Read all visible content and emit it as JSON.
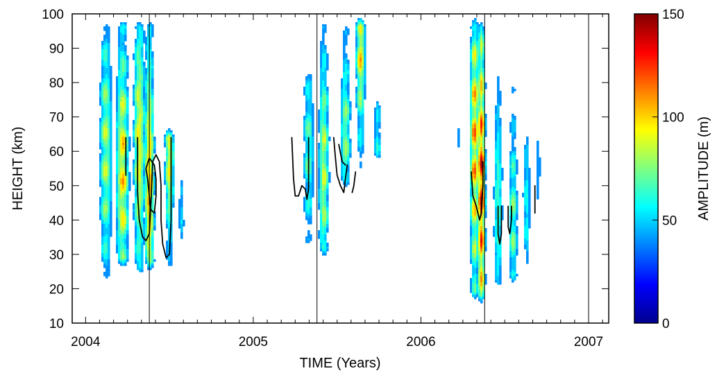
{
  "chart_data": {
    "type": "heatmap",
    "title": "",
    "xlabel": "TIME (Years)",
    "ylabel": "HEIGHT (km)",
    "xlim": [
      2003.92,
      2007.12
    ],
    "ylim": [
      10,
      100
    ],
    "x_ticks": [
      {
        "value": 2004,
        "label": "2004"
      },
      {
        "value": 2005,
        "label": "2005"
      },
      {
        "value": 2006,
        "label": "2006"
      },
      {
        "value": 2007,
        "label": "2007"
      }
    ],
    "y_ticks": [
      {
        "value": 10,
        "label": "10"
      },
      {
        "value": 20,
        "label": "20"
      },
      {
        "value": 30,
        "label": "30"
      },
      {
        "value": 40,
        "label": "40"
      },
      {
        "value": 50,
        "label": "50"
      },
      {
        "value": 60,
        "label": "60"
      },
      {
        "value": 70,
        "label": "70"
      },
      {
        "value": 80,
        "label": "80"
      },
      {
        "value": 90,
        "label": "90"
      },
      {
        "value": 100,
        "label": "100"
      }
    ],
    "colorbar": {
      "label": "AMPLITUDE (m)",
      "range": [
        0,
        150
      ],
      "ticks": [
        {
          "value": 0,
          "label": "0"
        },
        {
          "value": 50,
          "label": "50"
        },
        {
          "value": 100,
          "label": "100"
        },
        {
          "value": 150,
          "label": "150"
        }
      ],
      "colors": [
        "#00008f",
        "#0000ff",
        "#0080ff",
        "#00ffff",
        "#80ff80",
        "#ffff00",
        "#ff8000",
        "#ff0000",
        "#800000"
      ]
    },
    "vertical_lines": [
      2004.38,
      2005.38,
      2006.38,
      2007.0
    ],
    "events": [
      {
        "x": 2004.12,
        "y0": 20,
        "y1": 100,
        "peak_y": 60,
        "peak": 95,
        "wx": 0.055
      },
      {
        "x": 2004.22,
        "y0": 25,
        "y1": 100,
        "peak_y": 55,
        "peak": 115,
        "wx": 0.055
      },
      {
        "x": 2004.32,
        "y0": 22,
        "y1": 100,
        "peak_y": 62,
        "peak": 110,
        "wx": 0.05
      },
      {
        "x": 2004.38,
        "y0": 24,
        "y1": 100,
        "peak_y": 50,
        "peak": 125,
        "wx": 0.04
      },
      {
        "x": 2004.5,
        "y0": 23,
        "y1": 68,
        "peak_y": 58,
        "peak": 110,
        "wx": 0.04
      },
      {
        "x": 2004.57,
        "y0": 25,
        "y1": 55,
        "peak_y": 42,
        "peak": 60,
        "wx": 0.03
      },
      {
        "x": 2005.2,
        "y0": 60,
        "y1": 72,
        "peak_y": 65,
        "peak": 55,
        "wx": 0.02
      },
      {
        "x": 2005.33,
        "y0": 30,
        "y1": 88,
        "peak_y": 60,
        "peak": 80,
        "wx": 0.05
      },
      {
        "x": 2005.42,
        "y0": 28,
        "y1": 100,
        "peak_y": 55,
        "peak": 100,
        "wx": 0.045
      },
      {
        "x": 2005.55,
        "y0": 48,
        "y1": 100,
        "peak_y": 65,
        "peak": 90,
        "wx": 0.045
      },
      {
        "x": 2005.64,
        "y0": 52,
        "y1": 100,
        "peak_y": 90,
        "peak": 115,
        "wx": 0.04
      },
      {
        "x": 2005.74,
        "y0": 55,
        "y1": 80,
        "peak_y": 65,
        "peak": 70,
        "wx": 0.035
      },
      {
        "x": 2006.22,
        "y0": 50,
        "y1": 70,
        "peak_y": 65,
        "peak": 55,
        "wx": 0.025
      },
      {
        "x": 2006.32,
        "y0": 15,
        "y1": 100,
        "peak_y": 62,
        "peak": 125,
        "wx": 0.04
      },
      {
        "x": 2006.36,
        "y0": 14,
        "y1": 100,
        "peak_y": 50,
        "peak": 150,
        "wx": 0.032
      },
      {
        "x": 2006.46,
        "y0": 18,
        "y1": 92,
        "peak_y": 45,
        "peak": 80,
        "wx": 0.04
      },
      {
        "x": 2006.55,
        "y0": 20,
        "y1": 82,
        "peak_y": 40,
        "peak": 85,
        "wx": 0.04
      },
      {
        "x": 2006.63,
        "y0": 24,
        "y1": 80,
        "peak_y": 45,
        "peak": 70,
        "wx": 0.035
      },
      {
        "x": 2006.7,
        "y0": 30,
        "y1": 72,
        "peak_y": 55,
        "peak": 55,
        "wx": 0.025
      }
    ],
    "contours": [
      [
        [
          2004.24,
          64
        ],
        [
          2004.24,
          53
        ]
      ],
      [
        [
          2004.31,
          64
        ],
        [
          2004.31,
          48
        ],
        [
          2004.32,
          40
        ],
        [
          2004.34,
          35
        ],
        [
          2004.36,
          34
        ],
        [
          2004.38,
          36
        ],
        [
          2004.39,
          45
        ],
        [
          2004.4,
          57
        ],
        [
          2004.42,
          59
        ],
        [
          2004.44,
          57
        ],
        [
          2004.45,
          50
        ],
        [
          2004.45,
          40
        ],
        [
          2004.46,
          33
        ],
        [
          2004.48,
          29
        ],
        [
          2004.5,
          30
        ],
        [
          2004.51,
          40
        ],
        [
          2004.51,
          64
        ]
      ],
      [
        [
          2004.36,
          55
        ],
        [
          2004.37,
          52
        ],
        [
          2004.38,
          47
        ],
        [
          2004.39,
          43
        ],
        [
          2004.41,
          42
        ],
        [
          2004.42,
          47
        ],
        [
          2004.42,
          52
        ],
        [
          2004.41,
          56
        ],
        [
          2004.38,
          58
        ],
        [
          2004.36,
          55
        ]
      ],
      [
        [
          2005.23,
          64
        ],
        [
          2005.24,
          52
        ],
        [
          2005.25,
          47
        ],
        [
          2005.27,
          47
        ],
        [
          2005.29,
          50
        ],
        [
          2005.31,
          49
        ],
        [
          2005.32,
          46
        ],
        [
          2005.33,
          49
        ],
        [
          2005.33,
          64
        ]
      ],
      [
        [
          2005.48,
          64
        ],
        [
          2005.49,
          58
        ],
        [
          2005.5,
          53
        ],
        [
          2005.52,
          50
        ],
        [
          2005.54,
          48
        ],
        [
          2005.55,
          52
        ],
        [
          2005.56,
          56
        ]
      ],
      [
        [
          2005.51,
          62
        ],
        [
          2005.53,
          57
        ],
        [
          2005.55,
          56
        ]
      ],
      [
        [
          2005.61,
          54
        ],
        [
          2005.6,
          50
        ],
        [
          2005.59,
          48
        ]
      ],
      [
        [
          2006.3,
          54
        ],
        [
          2006.31,
          47
        ],
        [
          2006.33,
          44
        ],
        [
          2006.35,
          40
        ],
        [
          2006.36,
          42
        ],
        [
          2006.37,
          50
        ],
        [
          2006.37,
          57
        ]
      ],
      [
        [
          2006.46,
          44
        ],
        [
          2006.46,
          36
        ],
        [
          2006.47,
          33
        ],
        [
          2006.48,
          36
        ],
        [
          2006.48,
          44
        ]
      ],
      [
        [
          2006.52,
          44
        ],
        [
          2006.52,
          38
        ],
        [
          2006.53,
          36
        ],
        [
          2006.54,
          40
        ],
        [
          2006.54,
          44
        ]
      ],
      [
        [
          2006.68,
          50
        ],
        [
          2006.68,
          42
        ]
      ]
    ]
  }
}
